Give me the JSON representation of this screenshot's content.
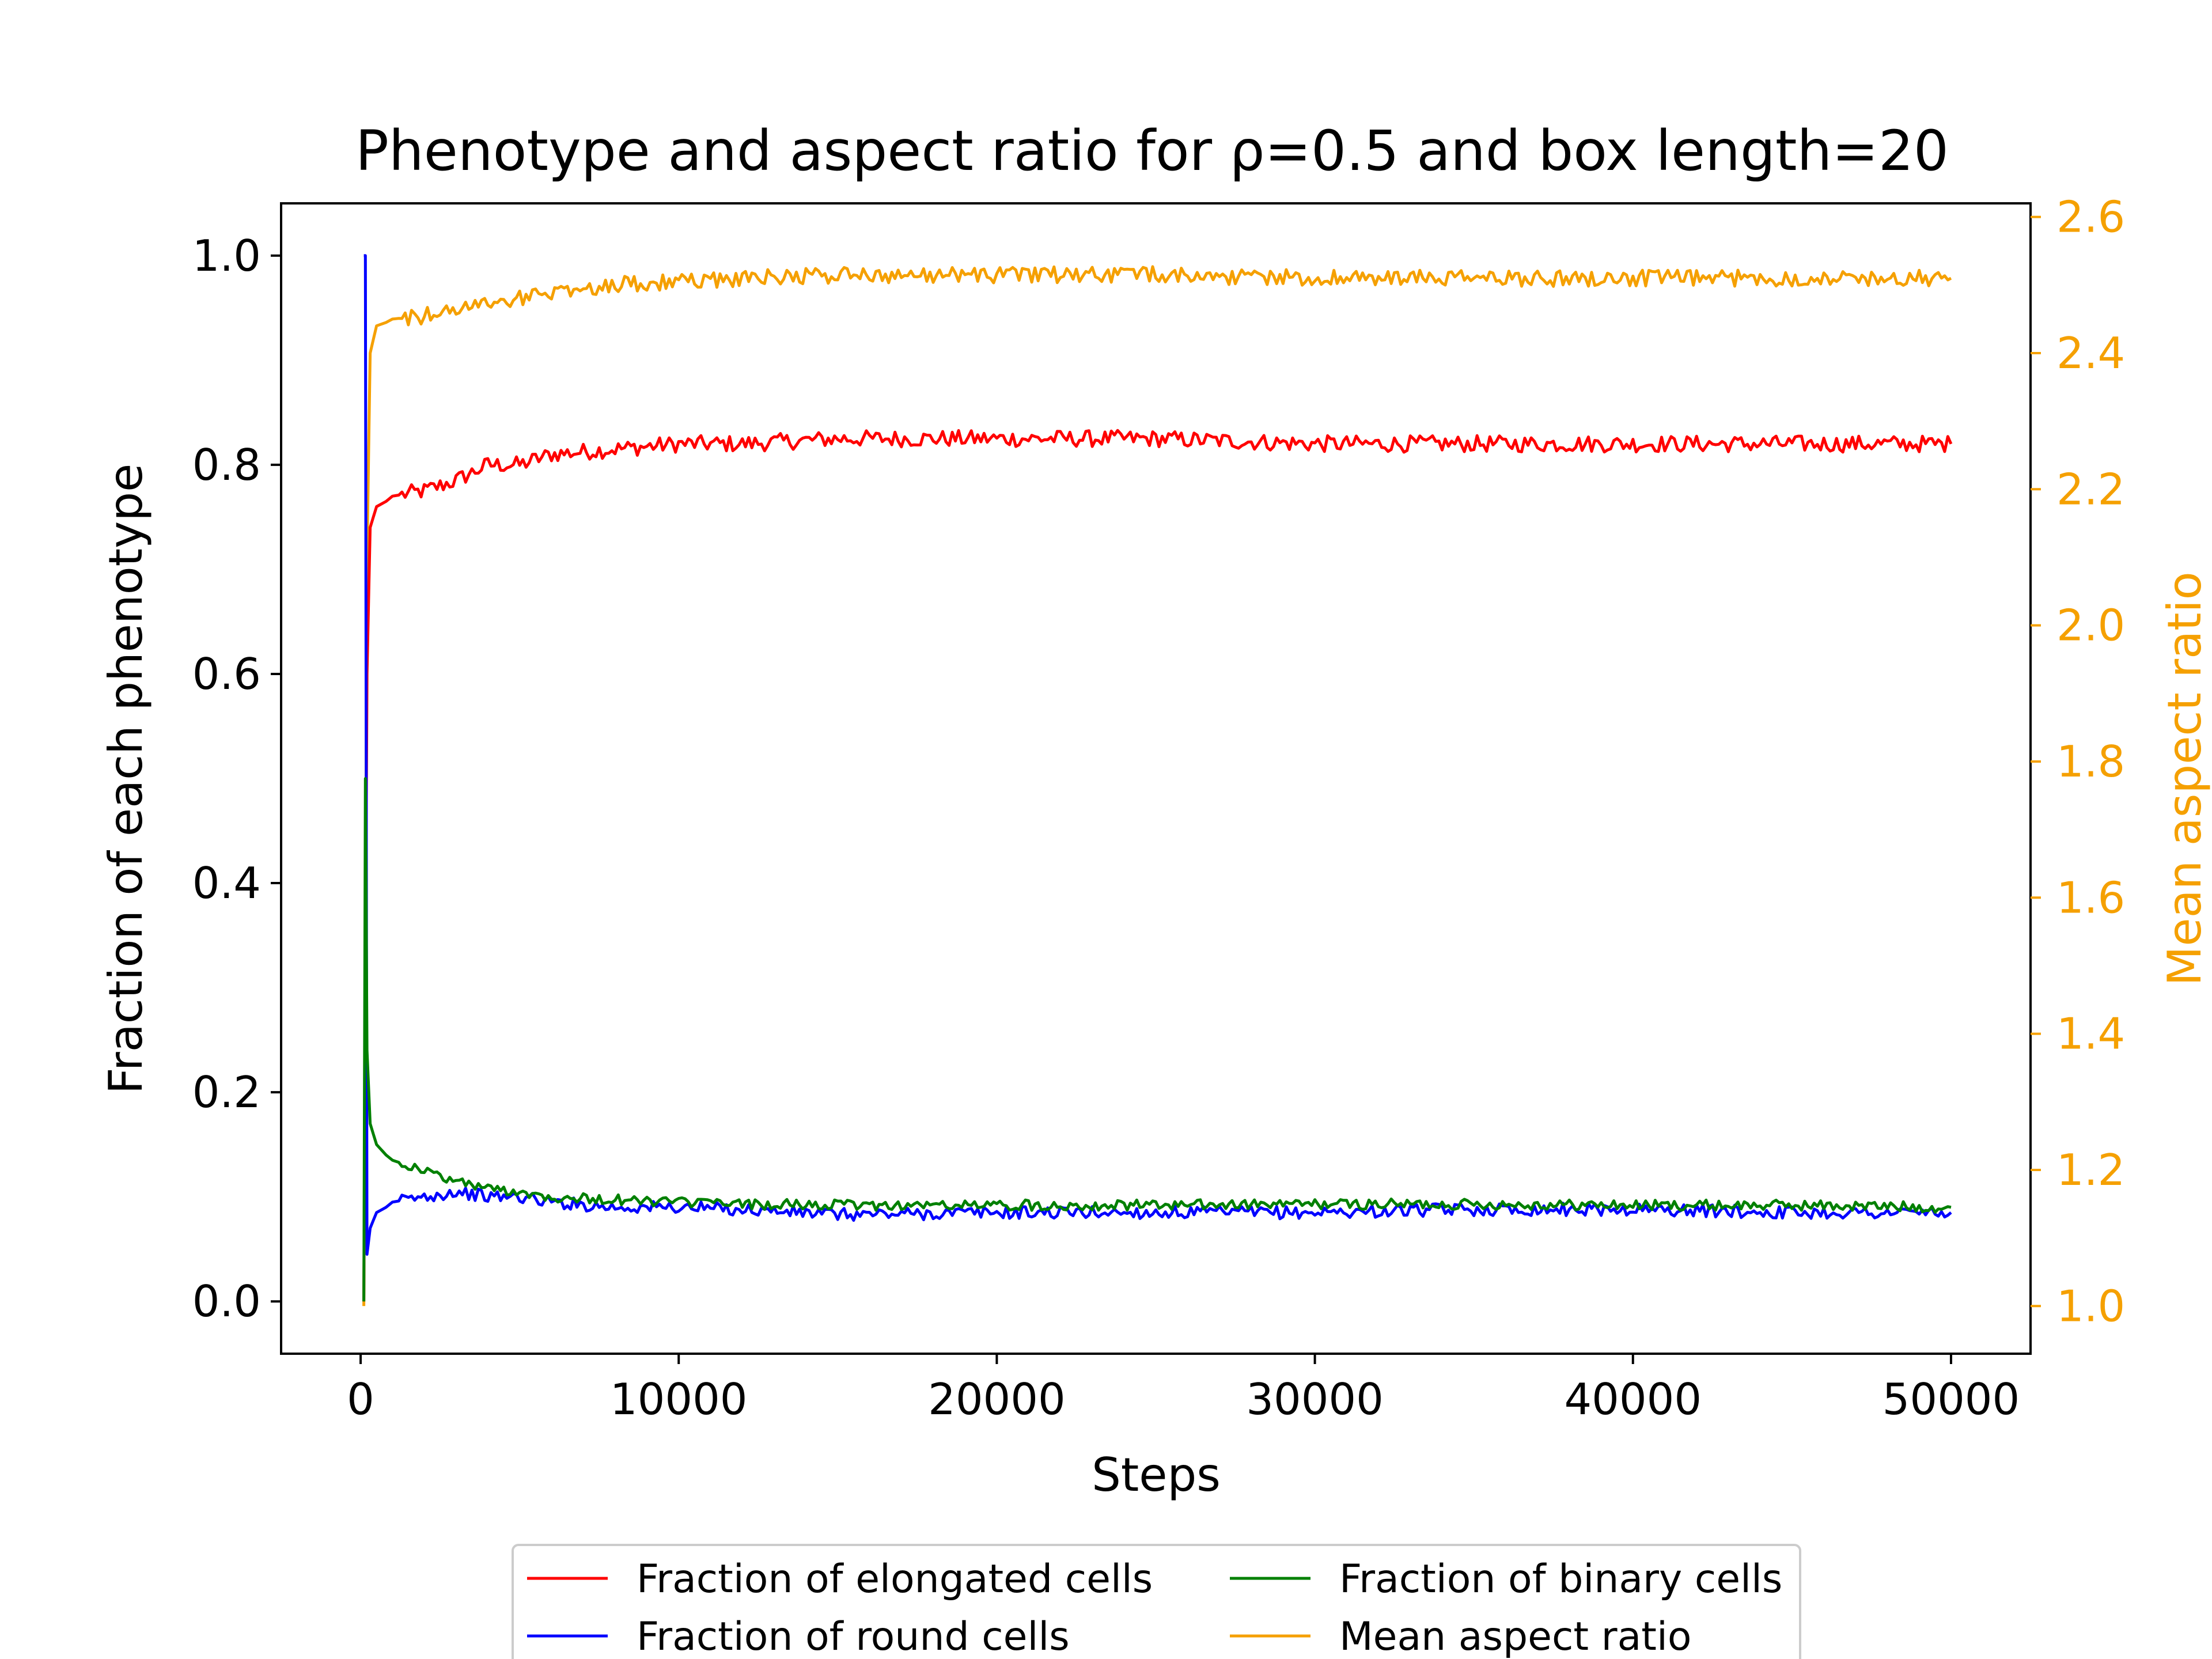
{
  "chart_data": {
    "type": "line",
    "title": "Phenotype and aspect ratio for ρ=0.5 and box length=20",
    "xlabel": "Steps",
    "ylabel": "Fraction of each phenotype",
    "ylabel_right": "Mean aspect ratio",
    "xlim": [
      -2500,
      52500
    ],
    "ylim": [
      -0.05,
      1.05
    ],
    "ylim_right": [
      0.93,
      2.62
    ],
    "x_ticks": [
      0,
      10000,
      20000,
      30000,
      40000,
      50000
    ],
    "x_tick_labels": [
      "0",
      "10000",
      "20000",
      "30000",
      "40000",
      "50000"
    ],
    "y_ticks": [
      0.0,
      0.2,
      0.4,
      0.6,
      0.8,
      1.0
    ],
    "y_tick_labels": [
      "0.0",
      "0.2",
      "0.4",
      "0.6",
      "0.8",
      "1.0"
    ],
    "y_right_ticks": [
      1.0,
      1.2,
      1.4,
      1.6,
      1.8,
      2.0,
      2.2,
      2.4,
      2.6
    ],
    "y_right_tick_labels": [
      "1.0",
      "1.2",
      "1.4",
      "1.6",
      "1.8",
      "2.0",
      "2.2",
      "2.4",
      "2.6"
    ],
    "grid": false,
    "legend_position": "bottom-center (below plot), 2 columns",
    "colors": {
      "elongated": "#ff0000",
      "round": "#0000ff",
      "binary": "#008000",
      "aspect": "#f5a000",
      "right_axis": "#f5a000"
    },
    "series": [
      {
        "name": "Fraction of elongated cells",
        "axis": "left",
        "color": "#ff0000",
        "x": [
          100,
          200,
          300,
          500,
          800,
          1000,
          2000,
          3000,
          4000,
          5000,
          6000,
          8000,
          10000,
          12000,
          15000,
          20000,
          25000,
          30000,
          35000,
          40000,
          45000,
          50000
        ],
        "y": [
          0.0,
          0.6,
          0.74,
          0.76,
          0.765,
          0.77,
          0.775,
          0.785,
          0.8,
          0.8,
          0.81,
          0.815,
          0.82,
          0.82,
          0.825,
          0.825,
          0.825,
          0.82,
          0.82,
          0.82,
          0.82,
          0.82
        ]
      },
      {
        "name": "Fraction of round cells",
        "axis": "left",
        "color": "#0000ff",
        "x": [
          100,
          150,
          200,
          300,
          500,
          800,
          1000,
          2000,
          3000,
          4000,
          5000,
          6000,
          8000,
          10000,
          12000,
          15000,
          20000,
          25000,
          30000,
          35000,
          40000,
          45000,
          50000
        ],
        "y": [
          1.0,
          1.0,
          0.045,
          0.07,
          0.085,
          0.09,
          0.095,
          0.1,
          0.105,
          0.1,
          0.1,
          0.095,
          0.09,
          0.09,
          0.088,
          0.083,
          0.085,
          0.085,
          0.085,
          0.088,
          0.088,
          0.085,
          0.085
        ]
      },
      {
        "name": "Fraction of binary cells",
        "axis": "left",
        "color": "#008000",
        "x": [
          100,
          150,
          200,
          300,
          500,
          800,
          1000,
          2000,
          3000,
          4000,
          5000,
          6000,
          8000,
          10000,
          12000,
          15000,
          20000,
          25000,
          30000,
          35000,
          40000,
          45000,
          50000
        ],
        "y": [
          0.0,
          0.5,
          0.24,
          0.17,
          0.15,
          0.14,
          0.135,
          0.125,
          0.115,
          0.108,
          0.105,
          0.1,
          0.097,
          0.095,
          0.093,
          0.092,
          0.092,
          0.092,
          0.093,
          0.093,
          0.092,
          0.092,
          0.09
        ]
      },
      {
        "name": "Mean aspect ratio",
        "axis": "right",
        "color": "#f5a000",
        "x": [
          100,
          200,
          300,
          500,
          800,
          1000,
          2000,
          3000,
          4000,
          5000,
          6000,
          8000,
          10000,
          12000,
          15000,
          20000,
          25000,
          30000,
          35000,
          40000,
          45000,
          50000
        ],
        "y": [
          1.0,
          2.1,
          2.4,
          2.44,
          2.445,
          2.45,
          2.455,
          2.465,
          2.475,
          2.48,
          2.49,
          2.5,
          2.505,
          2.51,
          2.515,
          2.515,
          2.515,
          2.51,
          2.51,
          2.51,
          2.51,
          2.51
        ]
      }
    ]
  }
}
